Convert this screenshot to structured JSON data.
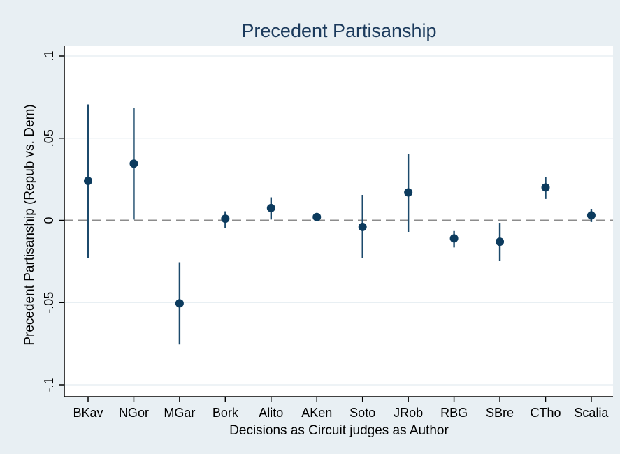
{
  "chart_data": {
    "type": "scatter",
    "subtype": "point-estimate-with-confidence-interval",
    "title": "Precedent Partisanship",
    "xlabel": "Decisions as Circuit judges as Author",
    "ylabel": "Precedent Partisanship (Repub vs. Dem)",
    "ylim": [
      -0.1,
      0.1
    ],
    "yticks": [
      -0.1,
      -0.05,
      0,
      0.05,
      0.1
    ],
    "ytick_labels": [
      "-.1",
      "-.05",
      "0",
      ".05",
      ".1"
    ],
    "reference_line": 0,
    "grid": true,
    "categories": [
      "BKav",
      "NGor",
      "MGar",
      "Bork",
      "Alito",
      "AKen",
      "Soto",
      "JRob",
      "RBG",
      "SBre",
      "CTho",
      "Scalia"
    ],
    "estimates": [
      0.024,
      0.0345,
      -0.0505,
      0.001,
      0.0075,
      0.002,
      -0.004,
      0.017,
      -0.011,
      -0.013,
      0.02,
      0.003
    ],
    "ci_lower": [
      -0.023,
      0.0005,
      -0.0755,
      -0.0045,
      0.0005,
      -0.0005,
      -0.023,
      -0.007,
      -0.0165,
      -0.0245,
      0.013,
      -0.001
    ],
    "ci_upper": [
      0.0705,
      0.0685,
      -0.0255,
      0.0055,
      0.014,
      0.0045,
      0.0155,
      0.0405,
      -0.0065,
      -0.0015,
      0.0265,
      0.007
    ]
  },
  "style": {
    "outer_background": "#e8eff3",
    "plot_background": "#ffffff",
    "gridline_color": "#e8eff3",
    "marker_color": "#0c3b5e",
    "ci_color": "#1c4a6c",
    "reference_line_color": "#8c8c8c",
    "axis_color": "#000000",
    "title_color": "#1b3a5c"
  }
}
